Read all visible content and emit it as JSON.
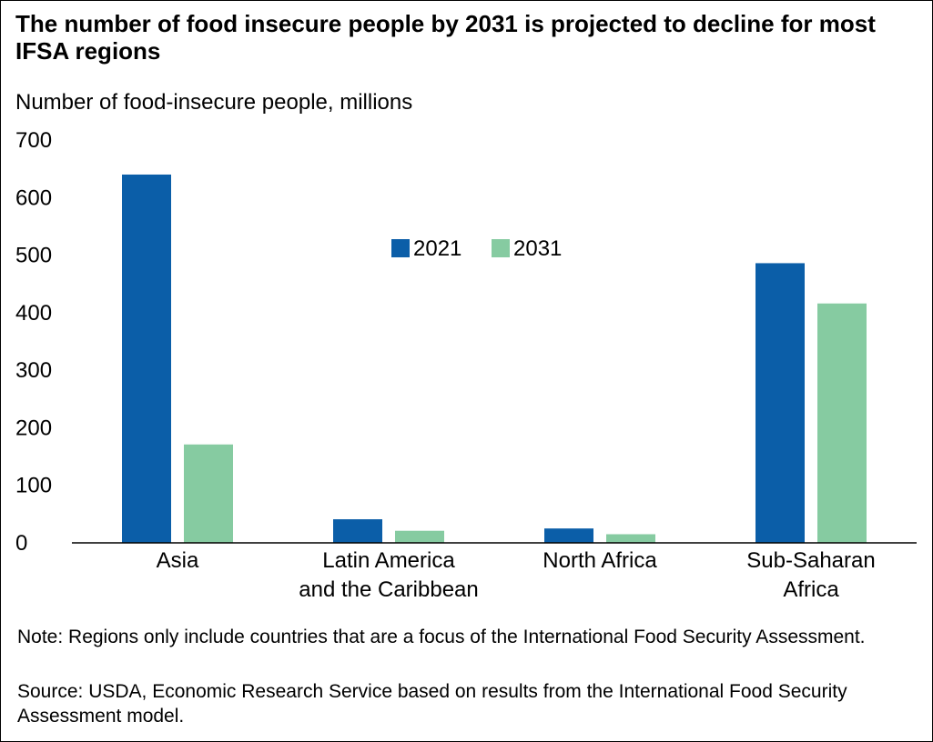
{
  "colors": {
    "series_2021": "#0b5ea8",
    "series_2031": "#86cba1",
    "axis": "#000000"
  },
  "chart_data": {
    "type": "bar",
    "title": "The number of food insecure people by 2031 is projected to decline for most IFSA regions",
    "ylabel": "Number of food-insecure people, millions",
    "xlabel": "",
    "categories": [
      [
        "Asia"
      ],
      [
        "Latin America",
        "and the Caribbean"
      ],
      [
        "North Africa"
      ],
      [
        "Sub-Saharan",
        "Africa"
      ]
    ],
    "series": [
      {
        "name": "2021",
        "values": [
          640,
          41,
          25,
          486
        ]
      },
      {
        "name": "2031",
        "values": [
          171,
          21,
          15,
          416
        ]
      }
    ],
    "ylim": [
      0,
      700
    ],
    "yticks": [
      0,
      100,
      200,
      300,
      400,
      500,
      600,
      700
    ],
    "grid": false,
    "legend_position": "top-center"
  },
  "note": "Note: Regions only include countries that are a focus of the International Food Security Assessment.",
  "source": "Source: USDA, Economic Research Service based on results from the International Food Security Assessment model."
}
